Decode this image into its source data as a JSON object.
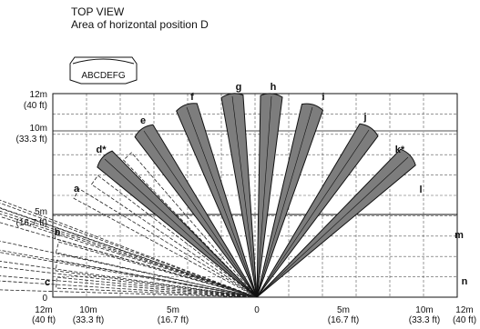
{
  "title": {
    "line1": "TOP VIEW",
    "line2": "Area of horizontal position D"
  },
  "sensor_icon_label": "ABCDEFG",
  "y_axis": [
    {
      "m": "12m",
      "ft": "(40 ft)"
    },
    {
      "m": "10m",
      "ft": "(33.3 ft)"
    },
    {
      "m": "5m",
      "ft": "(16.7 ft)"
    },
    {
      "m": "0",
      "ft": ""
    }
  ],
  "x_axis": [
    {
      "m": "12m",
      "ft": "(40 ft)"
    },
    {
      "m": "10m",
      "ft": "(33.3 ft)"
    },
    {
      "m": "5m",
      "ft": "(16.7 ft)"
    },
    {
      "m": "0",
      "ft": ""
    },
    {
      "m": "5m",
      "ft": "(16.7 ft)"
    },
    {
      "m": "10m",
      "ft": "(33.3 ft)"
    },
    {
      "m": "12m",
      "ft": "(40 ft)"
    }
  ],
  "zones_long": [
    "d*",
    "e",
    "f",
    "g",
    "h",
    "i",
    "j",
    "k*"
  ],
  "zones_short": [
    "a",
    "b",
    "c",
    "l",
    "m",
    "n"
  ],
  "colors": {
    "beam_fill": "#7d7d7d",
    "beam_stroke": "#111111",
    "grid": "#555555",
    "highlight_line": "#a8a8a8"
  }
}
